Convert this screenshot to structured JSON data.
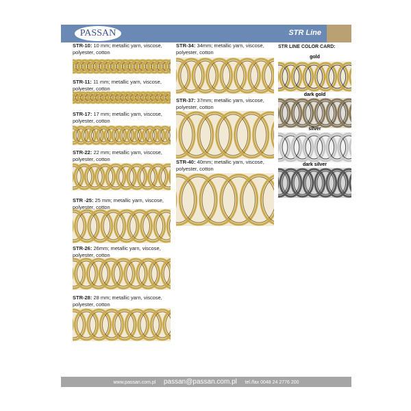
{
  "header": {
    "logo": "PASSAN",
    "title": "STR Line"
  },
  "products": [
    {
      "code": "STR-10:",
      "desc": "10 mm; metallic yarn, viscose, polyester, cotton"
    },
    {
      "code": "STR-11:",
      "desc": "11 mm; metallic yarn, viscose, polyester, cotton"
    },
    {
      "code": "STR-17:",
      "desc": "17 mm; metallic yarn, viscose, polyester, cotton"
    },
    {
      "code": "STR-22:",
      "desc": "22 mm; metallic yarn, viscose, polyester, cotton"
    },
    {
      "code": "STR -25:",
      "desc": "25 mm; metallic yarn, viscose, polyester, cotton"
    },
    {
      "code": "STR-26:",
      "desc": "26mm; metallic yarn, viscose, polyester, cotton"
    },
    {
      "code": "STR-28:",
      "desc": "28 mm; metallic yarn, viscose, polyester, cotton"
    },
    {
      "code": "STR-34:",
      "desc": "34mm; metallic yarn, viscose, polyester, cotton"
    },
    {
      "code": "STR-37:",
      "desc": "37mm; metallic yarn, viscose, polyester, cotton"
    },
    {
      "code": "STR-40:",
      "desc": "40mm; metallic yarn, viscose, polyester, cotton"
    }
  ],
  "color_card": {
    "title": "STR LINE COLOR CARD:",
    "colors": [
      {
        "name": "gold",
        "hex": "#c9a94e"
      },
      {
        "name": "dark gold",
        "hex": "#8a7a5a"
      },
      {
        "name": "silver",
        "hex": "#c8c8c8"
      },
      {
        "name": "dark silver",
        "hex": "#5a5a5a"
      }
    ]
  },
  "footer": {
    "web": "www.passan.com.pl",
    "email": "passan@passan.com.pl",
    "phone": "tel./fax 0048 24 2776 200"
  }
}
